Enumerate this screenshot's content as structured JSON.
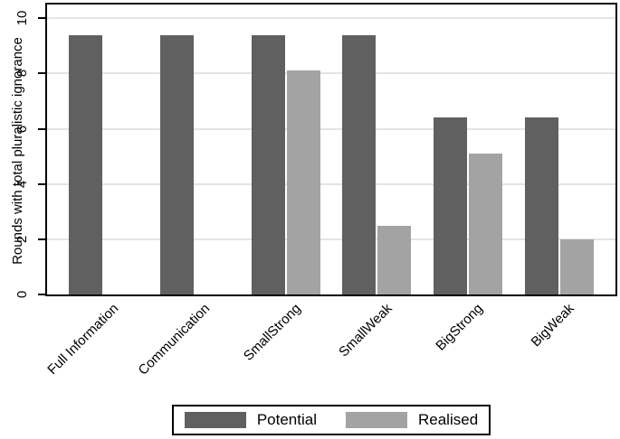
{
  "chart_data": {
    "type": "bar",
    "categories": [
      "Full Information",
      "Communication",
      "SmallStrong",
      "SmallWeak",
      "BigStrong",
      "BigWeak"
    ],
    "series": [
      {
        "name": "Potential",
        "color": "#606060",
        "values": [
          9.4,
          9.4,
          9.4,
          9.4,
          6.4,
          6.4
        ]
      },
      {
        "name": "Realised",
        "color": "#a3a3a3",
        "values": [
          0,
          0,
          8.1,
          2.5,
          5.1,
          2.0
        ]
      }
    ],
    "title": "",
    "xlabel": "",
    "ylabel": "Rounds with total pluralistic ignorance",
    "yticks": [
      0,
      2,
      4,
      6,
      8,
      10
    ],
    "ytick_labels": [
      "0",
      "2",
      "4",
      "6",
      "8",
      "10"
    ],
    "ylim": [
      0,
      10.5
    ],
    "grid": true,
    "gridline_color": "#e4e4e4",
    "axis_color": "#000000",
    "background_color": "#ffffff",
    "legend_position": "bottom",
    "legend": [
      {
        "label": "Potential",
        "color": "#606060"
      },
      {
        "label": "Realised",
        "color": "#a3a3a3"
      }
    ]
  }
}
